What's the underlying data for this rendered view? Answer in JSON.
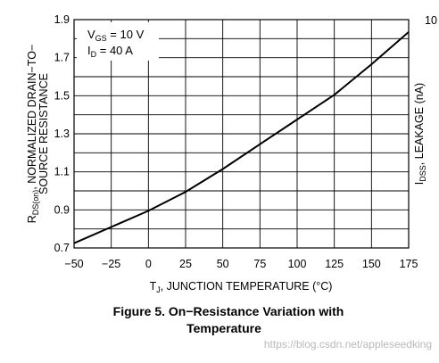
{
  "chart_data": {
    "type": "line",
    "x": [
      -50,
      -25,
      0,
      25,
      50,
      75,
      100,
      125,
      150,
      175
    ],
    "series": [
      {
        "values": [
          0.725,
          0.81,
          0.895,
          0.995,
          1.115,
          1.245,
          1.375,
          1.505,
          1.665,
          1.835
        ]
      }
    ],
    "xlim": [
      -50,
      175
    ],
    "ylim": [
      0.7,
      1.9
    ],
    "x_ticks": [
      "−50",
      "−25",
      "0",
      "25",
      "50",
      "75",
      "100",
      "125",
      "150",
      "175"
    ],
    "y_ticks": [
      "0.7",
      "0.9",
      "1.1",
      "1.3",
      "1.5",
      "1.7",
      "1.9"
    ],
    "grid": true,
    "xlabel_main": "T",
    "xlabel_sub": "J",
    "xlabel_rest": ", JUNCTION TEMPERATURE (°C)",
    "ylabel_main": "R",
    "ylabel_sub": "DS(on)",
    "ylabel_rest": ", NORMALIZED DRAIN−TO−",
    "ylabel_line2": "SOURCE RESISTANCE",
    "right_label_main": "I",
    "right_label_sub": "DSS",
    "right_label_rest": ", LEAKAGE (nA)",
    "right_tick_top": "10",
    "legend": {
      "line1_main": "V",
      "line1_sub": "GS",
      "line1_rest": " = 10 V",
      "line2_main": "I",
      "line2_sub": "D",
      "line2_rest": " = 40 A"
    }
  },
  "caption": {
    "line1": "Figure 5. On−Resistance Variation with",
    "line2": "Temperature"
  },
  "watermark": "https://blog.csdn.net/appleseedking",
  "colors": {
    "line": "#000000",
    "grid": "#000000",
    "text": "#000000",
    "watermark": "#b9b9b9"
  }
}
